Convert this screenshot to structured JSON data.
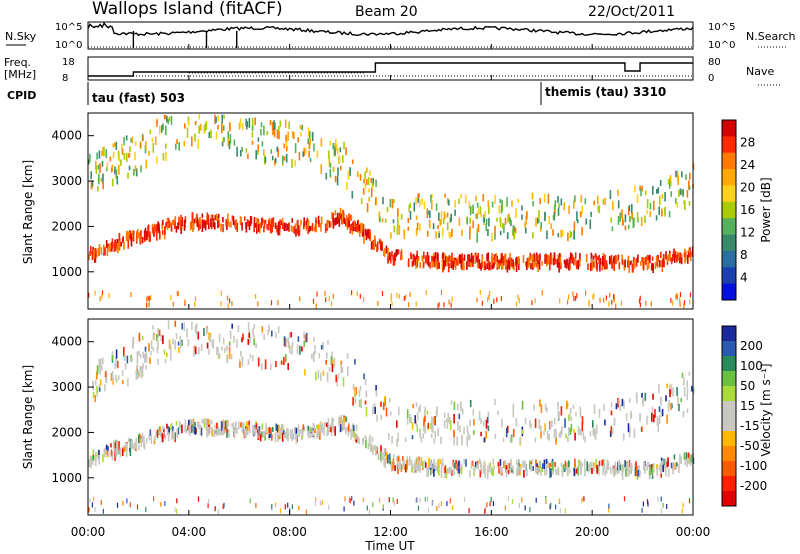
{
  "header": {
    "station": "Wallops Island (fitACF)",
    "beam": "Beam 20",
    "date": "22/Oct/2011"
  },
  "noise_panel": {
    "left_label": "N.Sky",
    "right_label": "N.Search",
    "left_ticks": [
      "10^5",
      "10^0"
    ],
    "right_ticks": [
      "10^5",
      "10^0"
    ]
  },
  "freq_panel": {
    "label_line1": "Freq.",
    "label_line2": "[MHz]",
    "right_label": "Nave",
    "left_ticks": [
      "18",
      "8"
    ],
    "right_ticks": [
      "80",
      "0"
    ],
    "cpid_label": "CPID",
    "cpid_1": "tau (fast) 503",
    "cpid_2": "themis (tau) 3310"
  },
  "power_panel": {
    "ylabel": "Slant Range [km]",
    "cbar_label": "Power [dB]",
    "cbar_ticks": [
      "28",
      "24",
      "20",
      "16",
      "12",
      "8",
      "4"
    ],
    "cbar_colors": [
      "#d40000",
      "#ff2a00",
      "#ff7a00",
      "#ffaa00",
      "#ffd21a",
      "#aacc00",
      "#55b25a",
      "#3a8a6a",
      "#2a6ea0",
      "#1c3fb0",
      "#0010e0"
    ]
  },
  "velocity_panel": {
    "ylabel": "Slant Range [km]",
    "cbar_label": "Velocity [m s⁻¹]",
    "cbar_ticks": [
      "200",
      "100",
      "50",
      "15",
      "-15",
      "-50",
      "-100",
      "-200"
    ],
    "cbar_colors": [
      "#1a2a9a",
      "#2a5ab0",
      "#2a8a5a",
      "#6ac040",
      "#a9dc3a",
      "#c8c8c0",
      "#c8c8c0",
      "#ffb700",
      "#ff8a00",
      "#ff5a00",
      "#ff2000",
      "#e00000"
    ]
  },
  "y_ticks": [
    "1000",
    "2000",
    "3000",
    "4000"
  ],
  "x_ticks": [
    "00:00",
    "04:00",
    "08:00",
    "12:00",
    "16:00",
    "20:00",
    "00:00"
  ],
  "xlabel": "Time UT",
  "chart_data": [
    {
      "type": "heatmap",
      "title": "Power",
      "ylabel": "Slant Range [km]",
      "xlabel": "Time UT",
      "x_range_hours": [
        0,
        24
      ],
      "ylim": [
        180,
        4500
      ],
      "colorbar": {
        "label": "Power [dB]",
        "ticks": [
          28,
          24,
          20,
          16,
          12,
          8,
          4
        ]
      },
      "bands": [
        {
          "name": "lower echo band",
          "points": [
            [
              0,
              1450
            ],
            [
              1,
              1700
            ],
            [
              2,
              1850
            ],
            [
              3,
              2050
            ],
            [
              4,
              2200
            ],
            [
              6,
              2150
            ],
            [
              8,
              2050
            ],
            [
              9,
              2100
            ],
            [
              10,
              2300
            ],
            [
              11,
              1900
            ],
            [
              12,
              1400
            ],
            [
              14,
              1300
            ],
            [
              16,
              1300
            ],
            [
              20,
              1300
            ],
            [
              22,
              1250
            ],
            [
              23,
              1350
            ],
            [
              24,
              1500
            ]
          ]
        },
        {
          "name": "upper echo band",
          "points": [
            [
              0,
              3200
            ],
            [
              1,
              3400
            ],
            [
              2,
              3750
            ],
            [
              4,
              4350
            ],
            [
              6,
              4000
            ],
            [
              8,
              3900
            ],
            [
              10,
              3500
            ],
            [
              11,
              2900
            ],
            [
              12,
              2300
            ],
            [
              16,
              2300
            ],
            [
              20,
              2300
            ],
            [
              22,
              2500
            ],
            [
              24,
              3000
            ]
          ]
        }
      ]
    },
    {
      "type": "heatmap",
      "title": "Velocity",
      "ylabel": "Slant Range [km]",
      "xlabel": "Time UT",
      "x_range_hours": [
        0,
        24
      ],
      "ylim": [
        180,
        4500
      ],
      "colorbar": {
        "label": "Velocity [m s⁻¹]",
        "ticks": [
          200,
          100,
          50,
          15,
          -15,
          -50,
          -100,
          -200
        ]
      },
      "bands": [
        {
          "name": "lower echo band",
          "points": [
            [
              0,
              1450
            ],
            [
              1,
              1700
            ],
            [
              2,
              1850
            ],
            [
              3,
              2050
            ],
            [
              4,
              2200
            ],
            [
              6,
              2150
            ],
            [
              8,
              2050
            ],
            [
              9,
              2100
            ],
            [
              10,
              2300
            ],
            [
              11,
              1900
            ],
            [
              12,
              1400
            ],
            [
              14,
              1300
            ],
            [
              16,
              1300
            ],
            [
              20,
              1300
            ],
            [
              22,
              1250
            ],
            [
              23,
              1350
            ],
            [
              24,
              1500
            ]
          ]
        },
        {
          "name": "upper echo band",
          "points": [
            [
              0,
              3200
            ],
            [
              1,
              3400
            ],
            [
              2,
              3750
            ],
            [
              4,
              4350
            ],
            [
              6,
              4000
            ],
            [
              8,
              3900
            ],
            [
              10,
              3500
            ],
            [
              11,
              2900
            ],
            [
              12,
              2300
            ],
            [
              16,
              2300
            ],
            [
              20,
              2300
            ],
            [
              22,
              2500
            ],
            [
              24,
              3000
            ]
          ]
        }
      ]
    }
  ]
}
